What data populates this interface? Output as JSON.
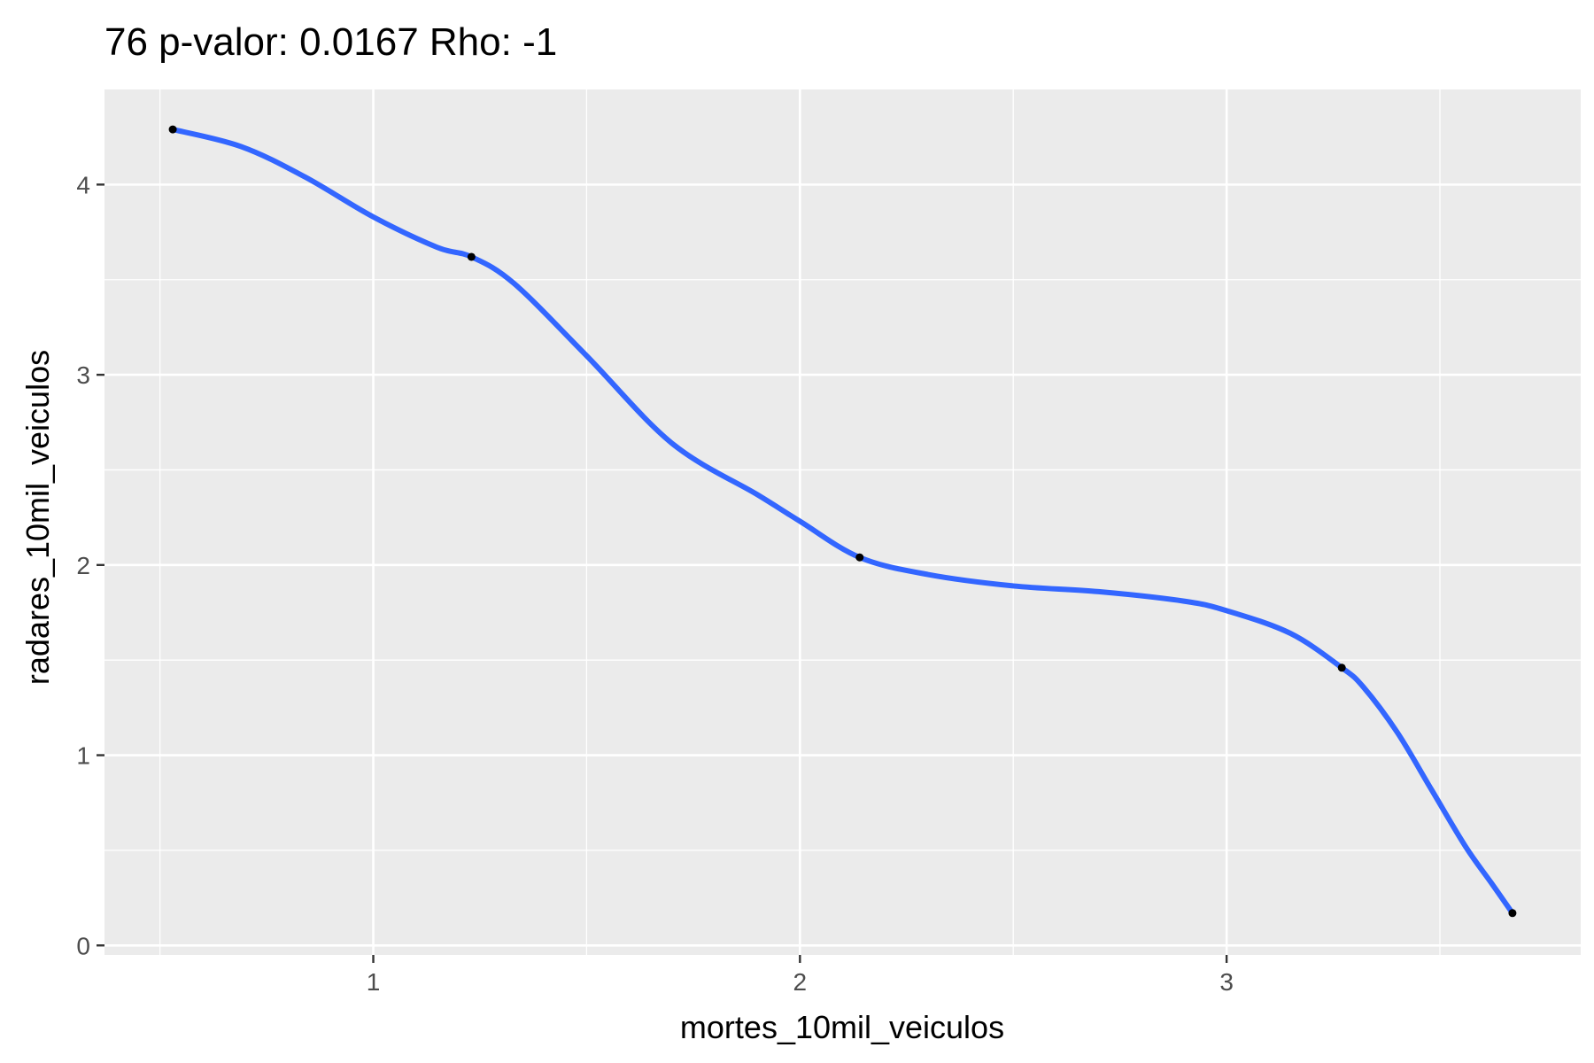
{
  "chart_data": {
    "type": "line",
    "title": "76 p-valor: 0.0167 Rho: -1",
    "xlabel": "mortes_10mil_veiculos",
    "ylabel": "radares_10mil_veiculos",
    "xlim": [
      0.37,
      3.83
    ],
    "ylim": [
      -0.05,
      4.5
    ],
    "x_ticks": [
      1,
      2,
      3
    ],
    "x_minor_ticks": [
      0.5,
      1.5,
      2.5,
      3.5
    ],
    "y_ticks": [
      0,
      1,
      2,
      3,
      4
    ],
    "y_minor_ticks": [
      0.5,
      1.5,
      2.5,
      3.5
    ],
    "grid": true,
    "colors": {
      "panel": "#ebebeb",
      "grid": "#ffffff",
      "line": "#3366ff",
      "point": "#000000"
    },
    "points": [
      {
        "x": 0.53,
        "y": 4.29
      },
      {
        "x": 1.23,
        "y": 3.62
      },
      {
        "x": 2.14,
        "y": 2.04
      },
      {
        "x": 3.27,
        "y": 1.46
      },
      {
        "x": 3.67,
        "y": 0.17
      }
    ],
    "smooth_curve": [
      {
        "x": 0.53,
        "y": 4.29
      },
      {
        "x": 0.69,
        "y": 4.2
      },
      {
        "x": 0.84,
        "y": 4.04
      },
      {
        "x": 1.0,
        "y": 3.83
      },
      {
        "x": 1.15,
        "y": 3.67
      },
      {
        "x": 1.23,
        "y": 3.62
      },
      {
        "x": 1.33,
        "y": 3.48
      },
      {
        "x": 1.5,
        "y": 3.1
      },
      {
        "x": 1.7,
        "y": 2.64
      },
      {
        "x": 1.9,
        "y": 2.37
      },
      {
        "x": 2.0,
        "y": 2.23
      },
      {
        "x": 2.14,
        "y": 2.04
      },
      {
        "x": 2.3,
        "y": 1.95
      },
      {
        "x": 2.5,
        "y": 1.89
      },
      {
        "x": 2.7,
        "y": 1.86
      },
      {
        "x": 2.9,
        "y": 1.81
      },
      {
        "x": 3.0,
        "y": 1.76
      },
      {
        "x": 3.15,
        "y": 1.64
      },
      {
        "x": 3.27,
        "y": 1.46
      },
      {
        "x": 3.32,
        "y": 1.36
      },
      {
        "x": 3.4,
        "y": 1.12
      },
      {
        "x": 3.48,
        "y": 0.82
      },
      {
        "x": 3.56,
        "y": 0.52
      },
      {
        "x": 3.62,
        "y": 0.33
      },
      {
        "x": 3.67,
        "y": 0.17
      }
    ]
  }
}
